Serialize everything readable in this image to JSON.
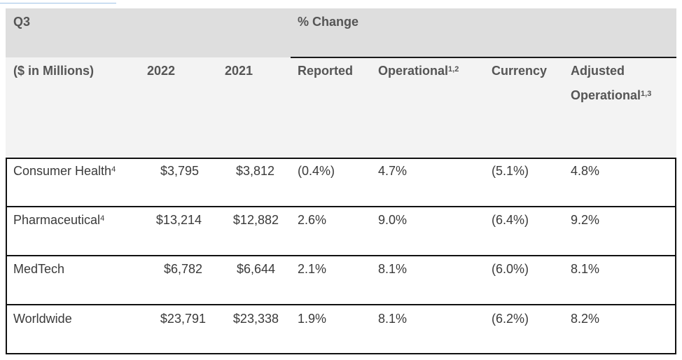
{
  "table": {
    "q_label": "Q3",
    "pct_change_label": "% Change",
    "units_label": "($ in Millions)",
    "col_2022": "2022",
    "col_2021": "2021",
    "col_reported": "Reported",
    "col_operational": "Operational",
    "col_operational_sup": "1,2",
    "col_currency": "Currency",
    "col_adjusted_line1": "Adjusted",
    "col_adjusted_line2": "Operational",
    "col_adjusted_sup": "1,3",
    "rows": [
      {
        "segment": "Consumer Health",
        "segment_sup": "4",
        "y2022": "$3,795",
        "y2021": "$3,812",
        "reported": "(0.4%)",
        "operational": "4.7%",
        "currency": "(5.1%)",
        "adjusted_operational": "4.8%"
      },
      {
        "segment": "Pharmaceutical",
        "segment_sup": "4",
        "y2022": "$13,214",
        "y2021": "$12,882",
        "reported": "2.6%",
        "operational": "9.0%",
        "currency": "(6.4%)",
        "adjusted_operational": "9.2%"
      },
      {
        "segment": "MedTech",
        "segment_sup": "",
        "y2022": "$6,782",
        "y2021": "$6,644",
        "reported": "2.1%",
        "operational": "8.1%",
        "currency": "(6.0%)",
        "adjusted_operational": "8.1%"
      },
      {
        "segment": "Worldwide",
        "segment_sup": "",
        "y2022": "$23,791",
        "y2021": "$23,338",
        "reported": "1.9%",
        "operational": "8.1%",
        "currency": "(6.2%)",
        "adjusted_operational": "8.2%"
      }
    ]
  }
}
